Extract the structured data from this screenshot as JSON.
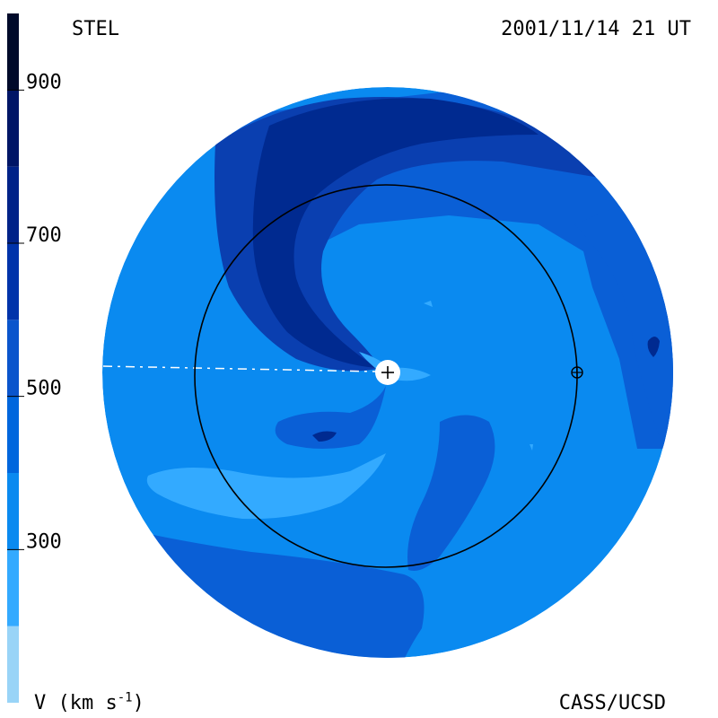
{
  "header": {
    "source": "STEL",
    "datetime": "2001/11/14 21 UT"
  },
  "footer": {
    "credit": "CASS/UCSD",
    "units_main": "V (km s",
    "units_exp": "-1",
    "units_close": ")"
  },
  "colorbar": {
    "ticks": [
      {
        "label": "900",
        "value": 900
      },
      {
        "label": "700",
        "value": 700
      },
      {
        "label": "500",
        "value": 500
      },
      {
        "label": "300",
        "value": 300
      }
    ],
    "range": [
      100,
      1000
    ],
    "bands": [
      {
        "from": 100,
        "to": 200,
        "color": "#99d4f7"
      },
      {
        "from": 200,
        "to": 300,
        "color": "#33aaff"
      },
      {
        "from": 300,
        "to": 400,
        "color": "#0a8af0"
      },
      {
        "from": 400,
        "to": 500,
        "color": "#0066dd"
      },
      {
        "from": 500,
        "to": 600,
        "color": "#0a55cc"
      },
      {
        "from": 600,
        "to": 700,
        "color": "#0033aa"
      },
      {
        "from": 700,
        "to": 800,
        "color": "#002288"
      },
      {
        "from": 800,
        "to": 900,
        "color": "#001566"
      },
      {
        "from": 900,
        "to": 1000,
        "color": "#000a2a"
      }
    ]
  },
  "colors": {
    "background_speed": "#0a8af0",
    "mid_speed": "#0a5fd6",
    "high_speed": "#0a3fb0",
    "very_high_speed": "#002a90",
    "low_speed": "#33aaff",
    "orbit_line": "#000000",
    "sun": "#ffffff"
  }
}
